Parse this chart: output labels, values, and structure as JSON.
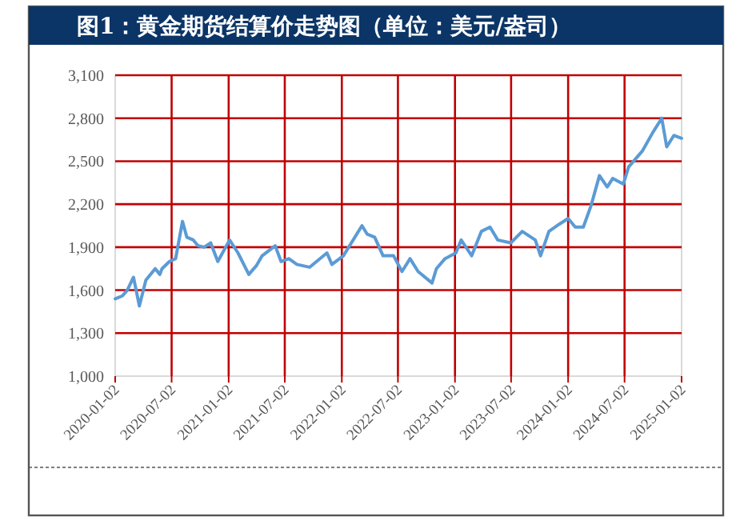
{
  "chart_data": {
    "type": "line",
    "title": "图1：黄金期货结算价走势图（单位：美元/盎司）",
    "x": [
      "2020-01-02",
      "2020-01-25",
      "2020-02-10",
      "2020-03-01",
      "2020-03-20",
      "2020-04-10",
      "2020-05-10",
      "2020-05-25",
      "2020-06-01",
      "2020-06-25",
      "2020-07-15",
      "2020-08-06",
      "2020-08-20",
      "2020-09-10",
      "2020-09-25",
      "2020-10-15",
      "2020-11-05",
      "2020-11-28",
      "2021-01-05",
      "2021-02-01",
      "2021-03-08",
      "2021-04-01",
      "2021-04-20",
      "2021-06-01",
      "2021-06-20",
      "2021-07-15",
      "2021-08-10",
      "2021-09-20",
      "2021-11-15",
      "2021-12-01",
      "2022-01-07",
      "2022-03-08",
      "2022-03-25",
      "2022-04-18",
      "2022-05-15",
      "2022-06-18",
      "2022-07-15",
      "2022-08-10",
      "2022-09-05",
      "2022-10-20",
      "2022-11-03",
      "2022-12-01",
      "2023-01-05",
      "2023-01-22",
      "2023-02-25",
      "2023-03-28",
      "2023-04-25",
      "2023-05-20",
      "2023-07-01",
      "2023-08-07",
      "2023-09-18",
      "2023-10-05",
      "2023-11-01",
      "2023-12-04",
      "2024-01-02",
      "2024-01-25",
      "2024-02-20",
      "2024-03-16",
      "2024-04-12",
      "2024-05-07",
      "2024-05-25",
      "2024-06-28",
      "2024-07-15",
      "2024-08-28",
      "2024-10-01",
      "2024-10-30",
      "2024-11-15",
      "2024-12-08",
      "2025-01-02"
    ],
    "series": [
      {
        "color": "#5b9bd5",
        "values": [
          1540,
          1560,
          1600,
          1690,
          1490,
          1670,
          1750,
          1710,
          1750,
          1800,
          1820,
          2080,
          1970,
          1950,
          1910,
          1900,
          1930,
          1800,
          1950,
          1860,
          1710,
          1770,
          1840,
          1910,
          1800,
          1820,
          1780,
          1760,
          1860,
          1780,
          1840,
          2050,
          1990,
          1970,
          1840,
          1840,
          1730,
          1820,
          1730,
          1650,
          1750,
          1820,
          1860,
          1950,
          1840,
          2010,
          2040,
          1950,
          1930,
          2010,
          1950,
          1840,
          2010,
          2060,
          2100,
          2040,
          2040,
          2190,
          2400,
          2320,
          2380,
          2340,
          2460,
          2570,
          2700,
          2800,
          2600,
          2680,
          2660
        ]
      }
    ],
    "ylim": [
      1000,
      3100
    ],
    "yticks": [
      {
        "value": 1000,
        "label": "1,000"
      },
      {
        "value": 1300,
        "label": "1,300"
      },
      {
        "value": 1600,
        "label": "1,600"
      },
      {
        "value": 1900,
        "label": "1,900"
      },
      {
        "value": 2200,
        "label": "2,200"
      },
      {
        "value": 2500,
        "label": "2,500"
      },
      {
        "value": 2800,
        "label": "2,800"
      },
      {
        "value": 3100,
        "label": "3,100"
      }
    ],
    "xlim": [
      "2020-01-02",
      "2025-01-02"
    ],
    "xticks": [
      {
        "value": "2020-01-02",
        "label": "2020-01-02"
      },
      {
        "value": "2020-07-02",
        "label": "2020-07-02"
      },
      {
        "value": "2021-01-02",
        "label": "2021-01-02"
      },
      {
        "value": "2021-07-02",
        "label": "2021-07-02"
      },
      {
        "value": "2022-01-02",
        "label": "2022-01-02"
      },
      {
        "value": "2022-07-02",
        "label": "2022-07-02"
      },
      {
        "value": "2023-01-02",
        "label": "2023-01-02"
      },
      {
        "value": "2023-07-02",
        "label": "2023-07-02"
      },
      {
        "value": "2024-01-02",
        "label": "2024-01-02"
      },
      {
        "value": "2024-07-02",
        "label": "2024-07-02"
      },
      {
        "value": "2025-01-02",
        "label": "2025-01-02"
      }
    ],
    "grid": true,
    "marker": "none",
    "line_style": "solid"
  }
}
